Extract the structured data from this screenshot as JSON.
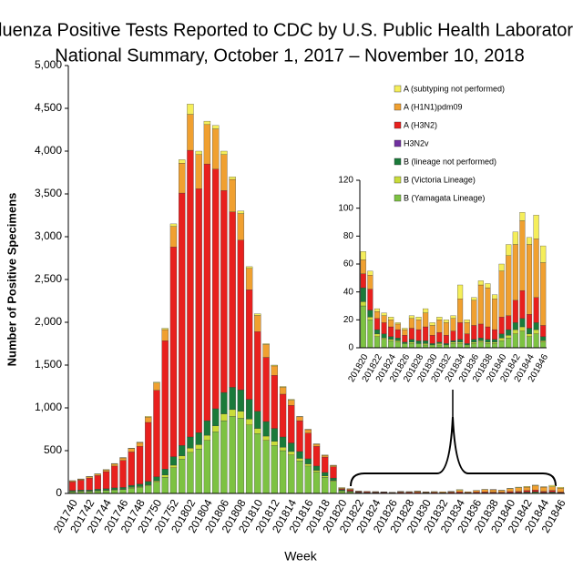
{
  "chart_data": [
    {
      "type": "bar",
      "stacked": true,
      "title": [
        "Influenza Positive Tests Reported to CDC by U.S. Public Health Laboratories,",
        "National Summary, October 1, 2017 – November 10, 2018"
      ],
      "x_label": "Week",
      "y_label": "Number of Positive Specimens",
      "categories": [
        "201740",
        null,
        "201742",
        null,
        "201744",
        null,
        "201746",
        null,
        "201748",
        null,
        "201750",
        null,
        "201752",
        null,
        "201802",
        null,
        "201804",
        null,
        "201806",
        null,
        "201808",
        null,
        "201810",
        null,
        "201812",
        null,
        "201814",
        null,
        "201816",
        null,
        "201818",
        null,
        "201820",
        null,
        "201822",
        null,
        "201824",
        null,
        "201826",
        null,
        "201828",
        null,
        "201830",
        null,
        "201832",
        null,
        "201834",
        null,
        "201836",
        null,
        "201838",
        null,
        "201840",
        null,
        "201842",
        null,
        "201844",
        null,
        "201846"
      ],
      "ylim": [
        0,
        5000
      ],
      "yticks": [
        0,
        500,
        {
          "value": 1000,
          "label": "1,000"
        },
        {
          "value": 1500,
          "label": "1,500"
        },
        {
          "value": 2000,
          "label": "2,000"
        },
        {
          "value": 2500,
          "label": "2,500"
        },
        {
          "value": 3000,
          "label": "3,000"
        },
        {
          "value": 3500,
          "label": "3,500"
        },
        {
          "value": 4000,
          "label": "4,000"
        },
        {
          "value": 4500,
          "label": "4,500"
        },
        {
          "value": 5000,
          "label": "5,000"
        }
      ],
      "series": [
        {
          "name": "B (Yamagata Lineage)",
          "color": "#7dc242",
          "values": [
            20,
            25,
            25,
            30,
            35,
            40,
            45,
            60,
            70,
            90,
            130,
            190,
            300,
            400,
            480,
            520,
            620,
            720,
            850,
            900,
            880,
            800,
            700,
            620,
            560,
            500,
            450,
            380,
            320,
            250,
            190,
            140,
            30,
            20,
            8,
            6,
            5,
            4,
            3,
            3,
            3,
            2,
            2,
            2,
            2,
            3,
            3,
            2,
            3,
            4,
            3,
            3,
            5,
            7,
            10,
            12,
            8,
            10,
            4
          ]
        },
        {
          "name": "B (Victoria Lineage)",
          "color": "#c9dc3a",
          "values": [
            5,
            5,
            5,
            5,
            5,
            5,
            5,
            10,
            10,
            10,
            15,
            25,
            30,
            40,
            50,
            50,
            60,
            70,
            80,
            80,
            80,
            70,
            60,
            50,
            50,
            40,
            40,
            30,
            25,
            20,
            15,
            10,
            3,
            2,
            2,
            1,
            1,
            1,
            0,
            1,
            0,
            1,
            0,
            1,
            0,
            1,
            1,
            0,
            1,
            1,
            1,
            1,
            2,
            2,
            3,
            3,
            2,
            3,
            1
          ]
        },
        {
          "name": "B (lineage not performed)",
          "color": "#1a7a3a",
          "values": [
            10,
            10,
            10,
            15,
            15,
            20,
            20,
            25,
            30,
            40,
            50,
            70,
            100,
            120,
            130,
            140,
            170,
            200,
            250,
            260,
            250,
            230,
            200,
            170,
            150,
            120,
            100,
            80,
            60,
            50,
            40,
            30,
            10,
            5,
            3,
            3,
            2,
            2,
            1,
            2,
            2,
            2,
            1,
            1,
            1,
            1,
            2,
            1,
            2,
            2,
            2,
            2,
            3,
            4,
            5,
            6,
            4,
            5,
            3
          ]
        },
        {
          "name": "H3N2v",
          "color": "#7030a0",
          "values": [
            0,
            0,
            0,
            0,
            0,
            0,
            0,
            0,
            0,
            0,
            0,
            0,
            0,
            0,
            0,
            0,
            0,
            0,
            0,
            0,
            0,
            0,
            0,
            0,
            0,
            0,
            0,
            0,
            0,
            0,
            0,
            0,
            0,
            0,
            0,
            0,
            0,
            0,
            0,
            0,
            0,
            0,
            0,
            0,
            0,
            0,
            0,
            0,
            0,
            0,
            0,
            0,
            0,
            0,
            0,
            0,
            0,
            0,
            0
          ]
        },
        {
          "name": "A (H3N2)",
          "color": "#e8201e",
          "values": [
            100,
            115,
            140,
            160,
            200,
            255,
            315,
            390,
            440,
            690,
            1010,
            1500,
            2450,
            2950,
            3350,
            2850,
            3000,
            2800,
            2360,
            2050,
            1750,
            1280,
            930,
            750,
            620,
            500,
            440,
            360,
            300,
            230,
            180,
            130,
            10,
            15,
            8,
            8,
            7,
            6,
            5,
            8,
            8,
            10,
            6,
            7,
            6,
            7,
            12,
            7,
            10,
            10,
            9,
            7,
            12,
            10,
            16,
            20,
            10,
            18,
            8
          ]
        },
        {
          "name": "A (H1N1)pdm09",
          "color": "#f0a030",
          "values": [
            10,
            10,
            15,
            15,
            20,
            25,
            30,
            40,
            45,
            60,
            85,
            130,
            240,
            350,
            420,
            400,
            460,
            470,
            420,
            380,
            310,
            250,
            190,
            150,
            110,
            80,
            60,
            45,
            40,
            25,
            20,
            15,
            10,
            10,
            5,
            5,
            5,
            4,
            4,
            7,
            7,
            10,
            7,
            9,
            9,
            9,
            17,
            8,
            18,
            28,
            28,
            22,
            33,
            43,
            40,
            50,
            50,
            42,
            45
          ]
        },
        {
          "name": "A (subtyping not performed)",
          "color": "#f5ee5a",
          "values": [
            5,
            5,
            5,
            5,
            5,
            5,
            5,
            5,
            5,
            10,
            10,
            15,
            30,
            40,
            120,
            40,
            40,
            40,
            40,
            30,
            30,
            20,
            20,
            10,
            10,
            10,
            10,
            5,
            5,
            5,
            5,
            5,
            6,
            3,
            2,
            2,
            2,
            1,
            1,
            2,
            2,
            3,
            2,
            2,
            2,
            2,
            10,
            2,
            2,
            3,
            3,
            3,
            5,
            8,
            9,
            6,
            5,
            17,
            12
          ]
        }
      ]
    },
    {
      "type": "bar",
      "stacked": true,
      "categories": [
        "201820",
        null,
        "201822",
        null,
        "201824",
        null,
        "201826",
        null,
        "201828",
        null,
        "201830",
        null,
        "201832",
        null,
        "201834",
        null,
        "201836",
        null,
        "201838",
        null,
        "201840",
        null,
        "201842",
        null,
        "201844",
        null,
        "201846"
      ],
      "ylim": [
        0,
        120
      ],
      "yticks": [
        0,
        20,
        40,
        60,
        80,
        100,
        120
      ],
      "series": [
        {
          "values": [
            30,
            20,
            8,
            6,
            5,
            4,
            3,
            3,
            3,
            2,
            2,
            2,
            2,
            3,
            3,
            2,
            3,
            4,
            3,
            3,
            5,
            7,
            10,
            12,
            8,
            10,
            4
          ]
        },
        {
          "values": [
            3,
            2,
            2,
            1,
            1,
            1,
            0,
            1,
            0,
            1,
            0,
            1,
            0,
            1,
            1,
            0,
            1,
            1,
            1,
            1,
            2,
            2,
            3,
            3,
            2,
            3,
            1
          ]
        },
        {
          "values": [
            10,
            5,
            3,
            3,
            2,
            2,
            1,
            2,
            2,
            2,
            1,
            1,
            1,
            1,
            2,
            1,
            2,
            2,
            2,
            2,
            3,
            4,
            5,
            6,
            4,
            5,
            3
          ]
        },
        {
          "values": [
            0,
            0,
            0,
            0,
            0,
            0,
            0,
            0,
            0,
            0,
            0,
            0,
            0,
            0,
            0,
            0,
            0,
            0,
            0,
            0,
            0,
            0,
            0,
            0,
            0,
            0,
            0
          ]
        },
        {
          "values": [
            10,
            15,
            8,
            8,
            7,
            6,
            5,
            8,
            8,
            10,
            6,
            7,
            6,
            7,
            12,
            7,
            10,
            10,
            9,
            7,
            12,
            10,
            16,
            20,
            10,
            18,
            8
          ]
        },
        {
          "values": [
            10,
            10,
            5,
            5,
            5,
            4,
            4,
            7,
            7,
            10,
            7,
            9,
            9,
            9,
            17,
            8,
            18,
            28,
            28,
            22,
            33,
            43,
            40,
            50,
            50,
            42,
            45
          ]
        },
        {
          "values": [
            6,
            3,
            2,
            2,
            2,
            1,
            1,
            2,
            2,
            3,
            2,
            2,
            2,
            2,
            10,
            2,
            2,
            3,
            3,
            3,
            5,
            8,
            9,
            6,
            5,
            17,
            12
          ]
        }
      ]
    }
  ]
}
